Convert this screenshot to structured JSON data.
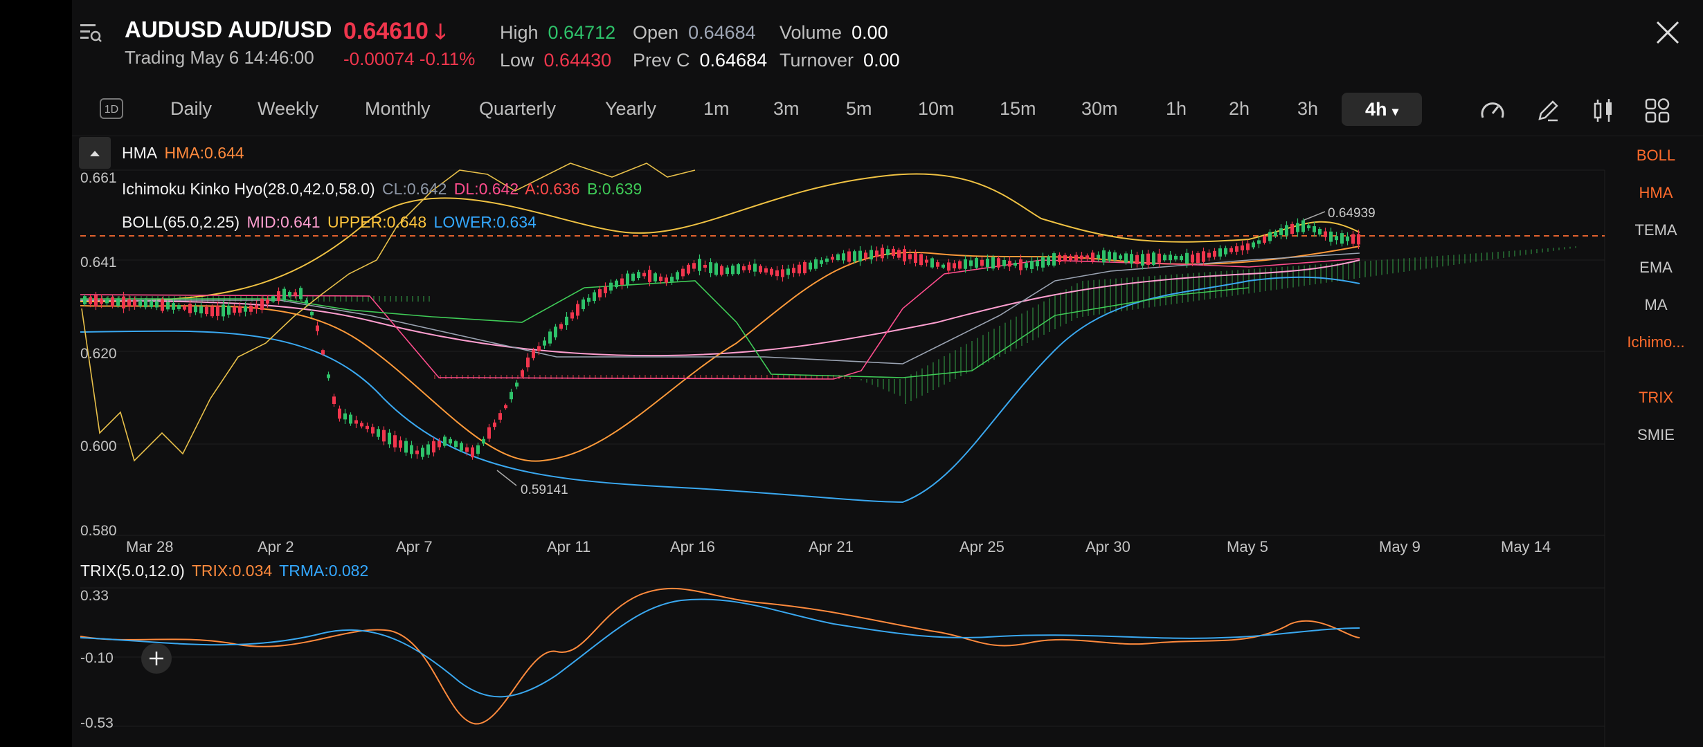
{
  "header": {
    "symbol": "AUDUSD AUD/USD",
    "trading_status": "Trading  May 6 14:46:00",
    "price": "0.64610",
    "change": "-0.00074  -0.11%",
    "stats": {
      "high_label": "High",
      "high_value": "0.64712",
      "low_label": "Low",
      "low_value": "0.64430",
      "open_label": "Open",
      "open_value": "0.64684",
      "prevc_label": "Prev C",
      "prevc_value": "0.64684",
      "volume_label": "Volume",
      "volume_value": "0.00",
      "turnover_label": "Turnover",
      "turnover_value": "0.00"
    }
  },
  "timeframes": {
    "d1_icon_label": "1D",
    "items": [
      "Daily",
      "Weekly",
      "Monthly",
      "Quarterly",
      "Yearly",
      "1m",
      "3m",
      "5m",
      "10m",
      "15m",
      "30m",
      "1h",
      "2h",
      "3h"
    ],
    "active": "4h"
  },
  "legends": {
    "hma": {
      "name": "HMA",
      "value": "HMA:0.644"
    },
    "ichimoku": {
      "name": "Ichimoku Kinko Hyo(28.0,42.0,58.0)",
      "cl": "CL:0.642",
      "dl": "DL:0.642",
      "a": "A:0.636",
      "b": "B:0.639"
    },
    "boll": {
      "name": "BOLL(65.0,2.25)",
      "mid": "MID:0.641",
      "upper": "UPPER:0.648",
      "lower": "LOWER:0.634"
    },
    "trix": {
      "name": "TRIX(5.0,12.0)",
      "trix": "TRIX:0.034",
      "trma": "TRMA:0.082"
    }
  },
  "price_axis": [
    "0.661",
    "0.641",
    "0.620",
    "0.600",
    "0.580"
  ],
  "trix_axis": [
    "0.33",
    "-0.10",
    "-0.53"
  ],
  "date_axis": [
    "Mar 28",
    "Apr 2",
    "Apr 7",
    "Apr 11",
    "Apr 16",
    "Apr 21",
    "Apr 25",
    "Apr 30",
    "May 5",
    "May 9",
    "May 14"
  ],
  "annotations": {
    "high": "0.64939",
    "low": "0.59141"
  },
  "right_indicators": [
    {
      "label": "BOLL",
      "active": true
    },
    {
      "label": "HMA",
      "active": true
    },
    {
      "label": "TEMA",
      "active": false
    },
    {
      "label": "EMA",
      "active": false
    },
    {
      "label": "MA",
      "active": false
    },
    {
      "label": "Ichimo...",
      "active": true
    },
    {
      "label": "TRIX",
      "active": true
    },
    {
      "label": "SMIE",
      "active": false
    }
  ],
  "colors": {
    "up": "#2ec26a",
    "down": "#f0364d",
    "accent": "#ff6b2c",
    "background": "#0f0f10"
  }
}
